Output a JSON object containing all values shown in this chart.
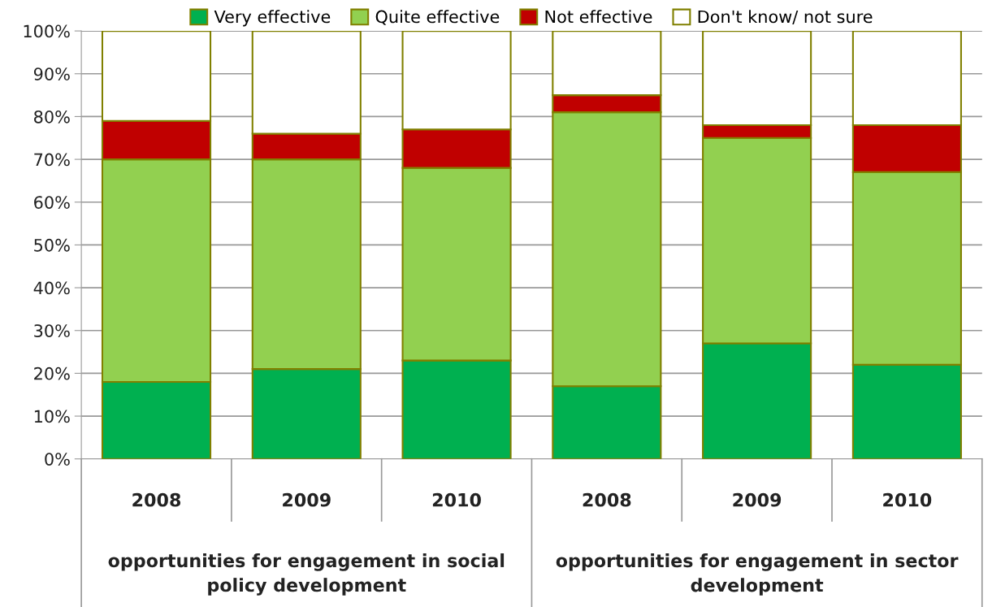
{
  "chart_data": {
    "type": "bar",
    "stacked": true,
    "categories": [
      "2008",
      "2009",
      "2010",
      "2008",
      "2009",
      "2010"
    ],
    "series": [
      {
        "name": "Very effective",
        "color": "#00b050",
        "values": [
          18,
          21,
          23,
          17,
          27,
          22
        ]
      },
      {
        "name": "Quite effective",
        "color": "#92d050",
        "values": [
          52,
          49,
          45,
          64,
          48,
          45
        ]
      },
      {
        "name": "Not effective",
        "color": "#c00000",
        "values": [
          9,
          6,
          9,
          4,
          3,
          11
        ]
      },
      {
        "name": "Don't know/ not sure",
        "color": "#ffffff",
        "values": [
          21,
          24,
          23,
          15,
          22,
          22
        ]
      }
    ],
    "annotations": [
      "opportunities for engagement in social\npolicy development",
      "opportunities for engagement in sector\ndevelopment"
    ],
    "ylim": [
      0,
      100
    ],
    "yticks": [
      {
        "value": 0,
        "label": "0%"
      },
      {
        "value": 10,
        "label": "10%"
      },
      {
        "value": 20,
        "label": "20%"
      },
      {
        "value": 30,
        "label": "30%"
      },
      {
        "value": 40,
        "label": "40%"
      },
      {
        "value": 50,
        "label": "50%"
      },
      {
        "value": 60,
        "label": "60%"
      },
      {
        "value": 70,
        "label": "70%"
      },
      {
        "value": 80,
        "label": "80%"
      },
      {
        "value": 90,
        "label": "90%"
      },
      {
        "value": 100,
        "label": "100%"
      }
    ],
    "grid": "y",
    "legend": "top"
  }
}
